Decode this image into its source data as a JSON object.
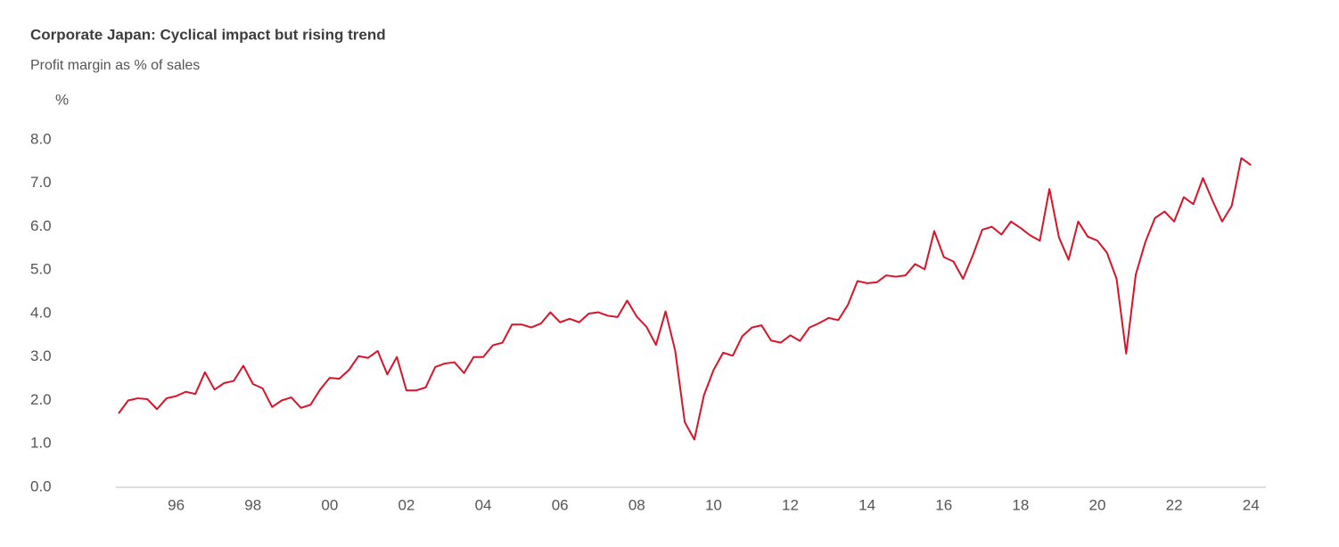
{
  "chart_data": {
    "type": "line",
    "title": "Corporate Japan: Cyclical impact but rising trend",
    "subtitle": "Profit margin as % of sales",
    "y_unit": "%",
    "x": [
      1994.5,
      1994.75,
      1995,
      1995.25,
      1995.5,
      1995.75,
      1996,
      1996.25,
      1996.5,
      1996.75,
      1997,
      1997.25,
      1997.5,
      1997.75,
      1998,
      1998.25,
      1998.5,
      1998.75,
      1999,
      1999.25,
      1999.5,
      1999.75,
      2000,
      2000.25,
      2000.5,
      2000.75,
      2001,
      2001.25,
      2001.5,
      2001.75,
      2002,
      2002.25,
      2002.5,
      2002.75,
      2003,
      2003.25,
      2003.5,
      2003.75,
      2004,
      2004.25,
      2004.5,
      2004.75,
      2005,
      2005.25,
      2005.5,
      2005.75,
      2006,
      2006.25,
      2006.5,
      2006.75,
      2007,
      2007.25,
      2007.5,
      2007.75,
      2008,
      2008.25,
      2008.5,
      2008.75,
      2009,
      2009.25,
      2009.5,
      2009.75,
      2010,
      2010.25,
      2010.5,
      2010.75,
      2011,
      2011.25,
      2011.5,
      2011.75,
      2012,
      2012.25,
      2012.5,
      2012.75,
      2013,
      2013.25,
      2013.5,
      2013.75,
      2014,
      2014.25,
      2014.5,
      2014.75,
      2015,
      2015.25,
      2015.5,
      2015.75,
      2016,
      2016.25,
      2016.5,
      2016.75,
      2017,
      2017.25,
      2017.5,
      2017.75,
      2018,
      2018.25,
      2018.5,
      2018.75,
      2019,
      2019.25,
      2019.5,
      2019.75,
      2020,
      2020.25,
      2020.5,
      2020.75,
      2021,
      2021.25,
      2021.5,
      2021.75,
      2022,
      2022.25,
      2022.5,
      2022.75,
      2023,
      2023.25,
      2023.5,
      2023.75,
      2024
    ],
    "series": [
      {
        "name": "Profit margin",
        "color": "#d7142a",
        "values": [
          1.7,
          2.0,
          2.05,
          2.03,
          1.8,
          2.05,
          2.1,
          2.2,
          2.15,
          2.65,
          2.25,
          2.4,
          2.45,
          2.8,
          2.38,
          2.28,
          1.85,
          2.0,
          2.07,
          1.83,
          1.9,
          2.25,
          2.52,
          2.5,
          2.7,
          3.02,
          2.98,
          3.14,
          2.6,
          3.0,
          2.23,
          2.23,
          2.3,
          2.77,
          2.85,
          2.88,
          2.63,
          3.0,
          3.0,
          3.27,
          3.33,
          3.75,
          3.75,
          3.68,
          3.77,
          4.03,
          3.8,
          3.88,
          3.8,
          4.0,
          4.03,
          3.95,
          3.92,
          4.3,
          3.93,
          3.7,
          3.28,
          4.05,
          3.15,
          1.5,
          1.1,
          2.12,
          2.7,
          3.1,
          3.03,
          3.48,
          3.68,
          3.73,
          3.38,
          3.33,
          3.5,
          3.37,
          3.68,
          3.78,
          3.9,
          3.85,
          4.2,
          4.75,
          4.7,
          4.72,
          4.88,
          4.85,
          4.88,
          5.14,
          5.02,
          5.9,
          5.3,
          5.2,
          4.8,
          5.33,
          5.93,
          6.0,
          5.82,
          6.12,
          5.97,
          5.8,
          5.68,
          6.87,
          5.75,
          5.24,
          6.12,
          5.77,
          5.68,
          5.4,
          4.8,
          3.08,
          4.9,
          5.65,
          6.2,
          6.35,
          6.12,
          6.68,
          6.52,
          7.12,
          6.6,
          6.12,
          6.48,
          7.58,
          7.42
        ]
      }
    ],
    "xlim": [
      1994.43,
      2024.39
    ],
    "xticks": [
      {
        "value": 1996,
        "label": "96"
      },
      {
        "value": 1998,
        "label": "98"
      },
      {
        "value": 2000,
        "label": "00"
      },
      {
        "value": 2002,
        "label": "02"
      },
      {
        "value": 2004,
        "label": "04"
      },
      {
        "value": 2006,
        "label": "06"
      },
      {
        "value": 2008,
        "label": "08"
      },
      {
        "value": 2010,
        "label": "10"
      },
      {
        "value": 2012,
        "label": "12"
      },
      {
        "value": 2014,
        "label": "14"
      },
      {
        "value": 2016,
        "label": "16"
      },
      {
        "value": 2018,
        "label": "18"
      },
      {
        "value": 2020,
        "label": "20"
      },
      {
        "value": 2022,
        "label": "22"
      },
      {
        "value": 2024,
        "label": "24"
      }
    ],
    "ylim": [
      0,
      8
    ],
    "yticks": [
      {
        "value": 0,
        "label": "0.0"
      },
      {
        "value": 1,
        "label": "1.0"
      },
      {
        "value": 2,
        "label": "2.0"
      },
      {
        "value": 3,
        "label": "3.0"
      },
      {
        "value": 4,
        "label": "4.0"
      },
      {
        "value": 5,
        "label": "5.0"
      },
      {
        "value": 6,
        "label": "6.0"
      },
      {
        "value": 7,
        "label": "7.0"
      },
      {
        "value": 8,
        "label": "8.0"
      }
    ],
    "grid": false
  }
}
